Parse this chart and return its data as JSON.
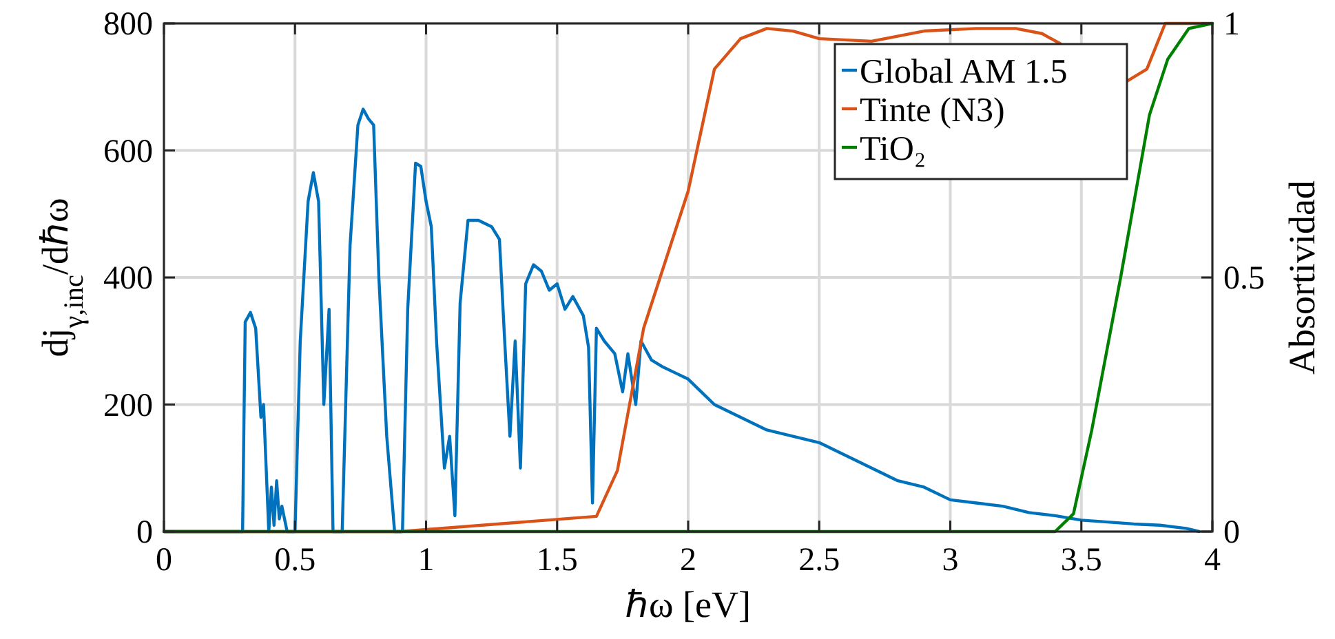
{
  "chart_data": {
    "type": "line",
    "xlabel": "ℏω [eV]",
    "ylabel": "dj$_{γ,inc}$/dℏω",
    "y2label": "Absortividad",
    "xlim": [
      0,
      4
    ],
    "xticks": [
      0,
      0.5,
      1,
      1.5,
      2,
      2.5,
      3,
      3.5,
      4
    ],
    "ylim": [
      0,
      800
    ],
    "yticks": [
      0,
      200,
      400,
      600,
      800
    ],
    "y2lim": [
      0,
      1
    ],
    "y2ticks": [
      0,
      0.5,
      1
    ],
    "grid": true,
    "legend": "top right",
    "line_style": "solid",
    "marker": "none",
    "series": [
      {
        "name": "Global AM 1.5",
        "color": "#0072bd",
        "x": [
          0,
          0.3,
          0.31,
          0.33,
          0.35,
          0.37,
          0.38,
          0.4,
          0.41,
          0.42,
          0.43,
          0.44,
          0.45,
          0.47,
          0.5,
          0.52,
          0.55,
          0.57,
          0.59,
          0.61,
          0.63,
          0.645,
          0.68,
          0.71,
          0.74,
          0.76,
          0.78,
          0.8,
          0.82,
          0.85,
          0.88,
          0.91,
          0.93,
          0.96,
          0.98,
          1.0,
          1.02,
          1.04,
          1.07,
          1.09,
          1.11,
          1.13,
          1.16,
          1.2,
          1.25,
          1.28,
          1.3,
          1.32,
          1.34,
          1.36,
          1.38,
          1.41,
          1.44,
          1.47,
          1.5,
          1.53,
          1.56,
          1.6,
          1.62,
          1.635,
          1.65,
          1.68,
          1.72,
          1.75,
          1.77,
          1.8,
          1.82,
          1.86,
          1.9,
          1.95,
          2.0,
          2.05,
          2.1,
          2.2,
          2.3,
          2.4,
          2.5,
          2.6,
          2.7,
          2.8,
          2.9,
          3.0,
          3.1,
          3.2,
          3.3,
          3.4,
          3.5,
          3.6,
          3.7,
          3.8,
          3.9,
          3.95
        ],
        "values": [
          0,
          0,
          330,
          345,
          320,
          180,
          200,
          0,
          70,
          10,
          80,
          20,
          40,
          0,
          0,
          300,
          520,
          565,
          520,
          200,
          350,
          0,
          0,
          450,
          640,
          665,
          650,
          640,
          400,
          150,
          0,
          0,
          350,
          580,
          575,
          520,
          480,
          300,
          100,
          150,
          25,
          360,
          490,
          490,
          480,
          460,
          300,
          150,
          300,
          100,
          390,
          420,
          410,
          380,
          390,
          350,
          370,
          340,
          290,
          45,
          320,
          300,
          280,
          220,
          280,
          200,
          300,
          270,
          260,
          250,
          240,
          220,
          200,
          180,
          160,
          150,
          140,
          120,
          100,
          80,
          70,
          50,
          45,
          40,
          30,
          25,
          18,
          15,
          12,
          10,
          5,
          0
        ]
      },
      {
        "name": "Tinte (N3)",
        "color": "#d95319",
        "axis": "y2",
        "x": [
          0,
          0.9,
          1.65,
          1.73,
          1.83,
          2.0,
          2.1,
          2.2,
          2.3,
          2.4,
          2.5,
          2.7,
          2.9,
          3.1,
          3.25,
          3.35,
          3.42,
          3.55,
          3.67,
          3.75,
          3.82,
          4.0
        ],
        "values": [
          0,
          0,
          0.03,
          0.12,
          0.4,
          0.67,
          0.91,
          0.97,
          0.99,
          0.985,
          0.97,
          0.965,
          0.985,
          0.99,
          0.99,
          0.98,
          0.96,
          null,
          0.885,
          0.91,
          1.0,
          1.0
        ]
      },
      {
        "name": "TiO₂",
        "color": "#008000",
        "axis": "y2",
        "x": [
          0,
          3.4,
          3.47,
          3.54,
          3.65,
          3.76,
          3.83,
          3.91,
          4.0
        ],
        "values": [
          0,
          0,
          0.035,
          0.2,
          0.5,
          0.82,
          0.93,
          0.99,
          1.0
        ]
      }
    ]
  }
}
